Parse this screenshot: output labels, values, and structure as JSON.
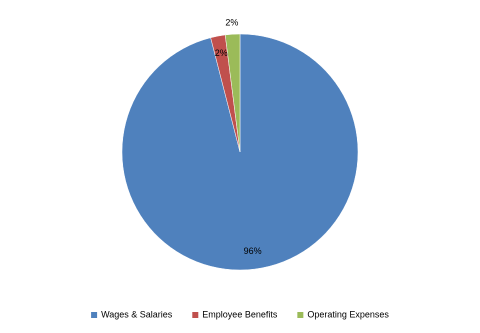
{
  "chart_data": {
    "type": "pie",
    "categories": [
      "Wages & Salaries",
      "Employee Benefits",
      "Operating Expenses"
    ],
    "values": [
      96,
      2,
      2
    ],
    "value_labels": [
      "96%",
      "2%",
      "2%"
    ],
    "colors": [
      "#4f81bd",
      "#c0504d",
      "#9bbb59"
    ],
    "legend": "bottom"
  }
}
